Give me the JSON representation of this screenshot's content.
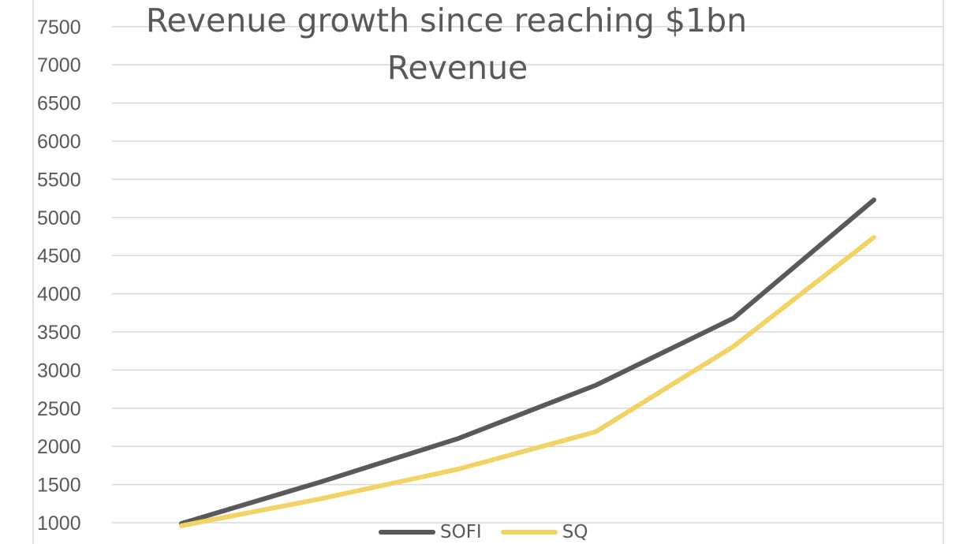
{
  "chart_data": {
    "type": "line",
    "title": "Revenue growth since reaching $1bn",
    "subtitle": "Revenue",
    "xlabel": "",
    "ylabel": "",
    "ylim": [
      1000,
      8000
    ],
    "y_ticks": [
      1000,
      1500,
      2000,
      2500,
      3000,
      3500,
      4000,
      4500,
      5000,
      5500,
      6000,
      6500,
      7000,
      7500
    ],
    "grid": true,
    "legend_position": "bottom",
    "x": [
      1,
      2,
      3,
      4,
      5,
      6
    ],
    "series": [
      {
        "name": "SOFI",
        "color": "#595959",
        "values": [
          990,
          1530,
          2100,
          2800,
          3680,
          5230
        ]
      },
      {
        "name": "SQ",
        "color": "#f2d466",
        "values": [
          960,
          1310,
          1700,
          2190,
          3310,
          4740
        ]
      }
    ]
  }
}
